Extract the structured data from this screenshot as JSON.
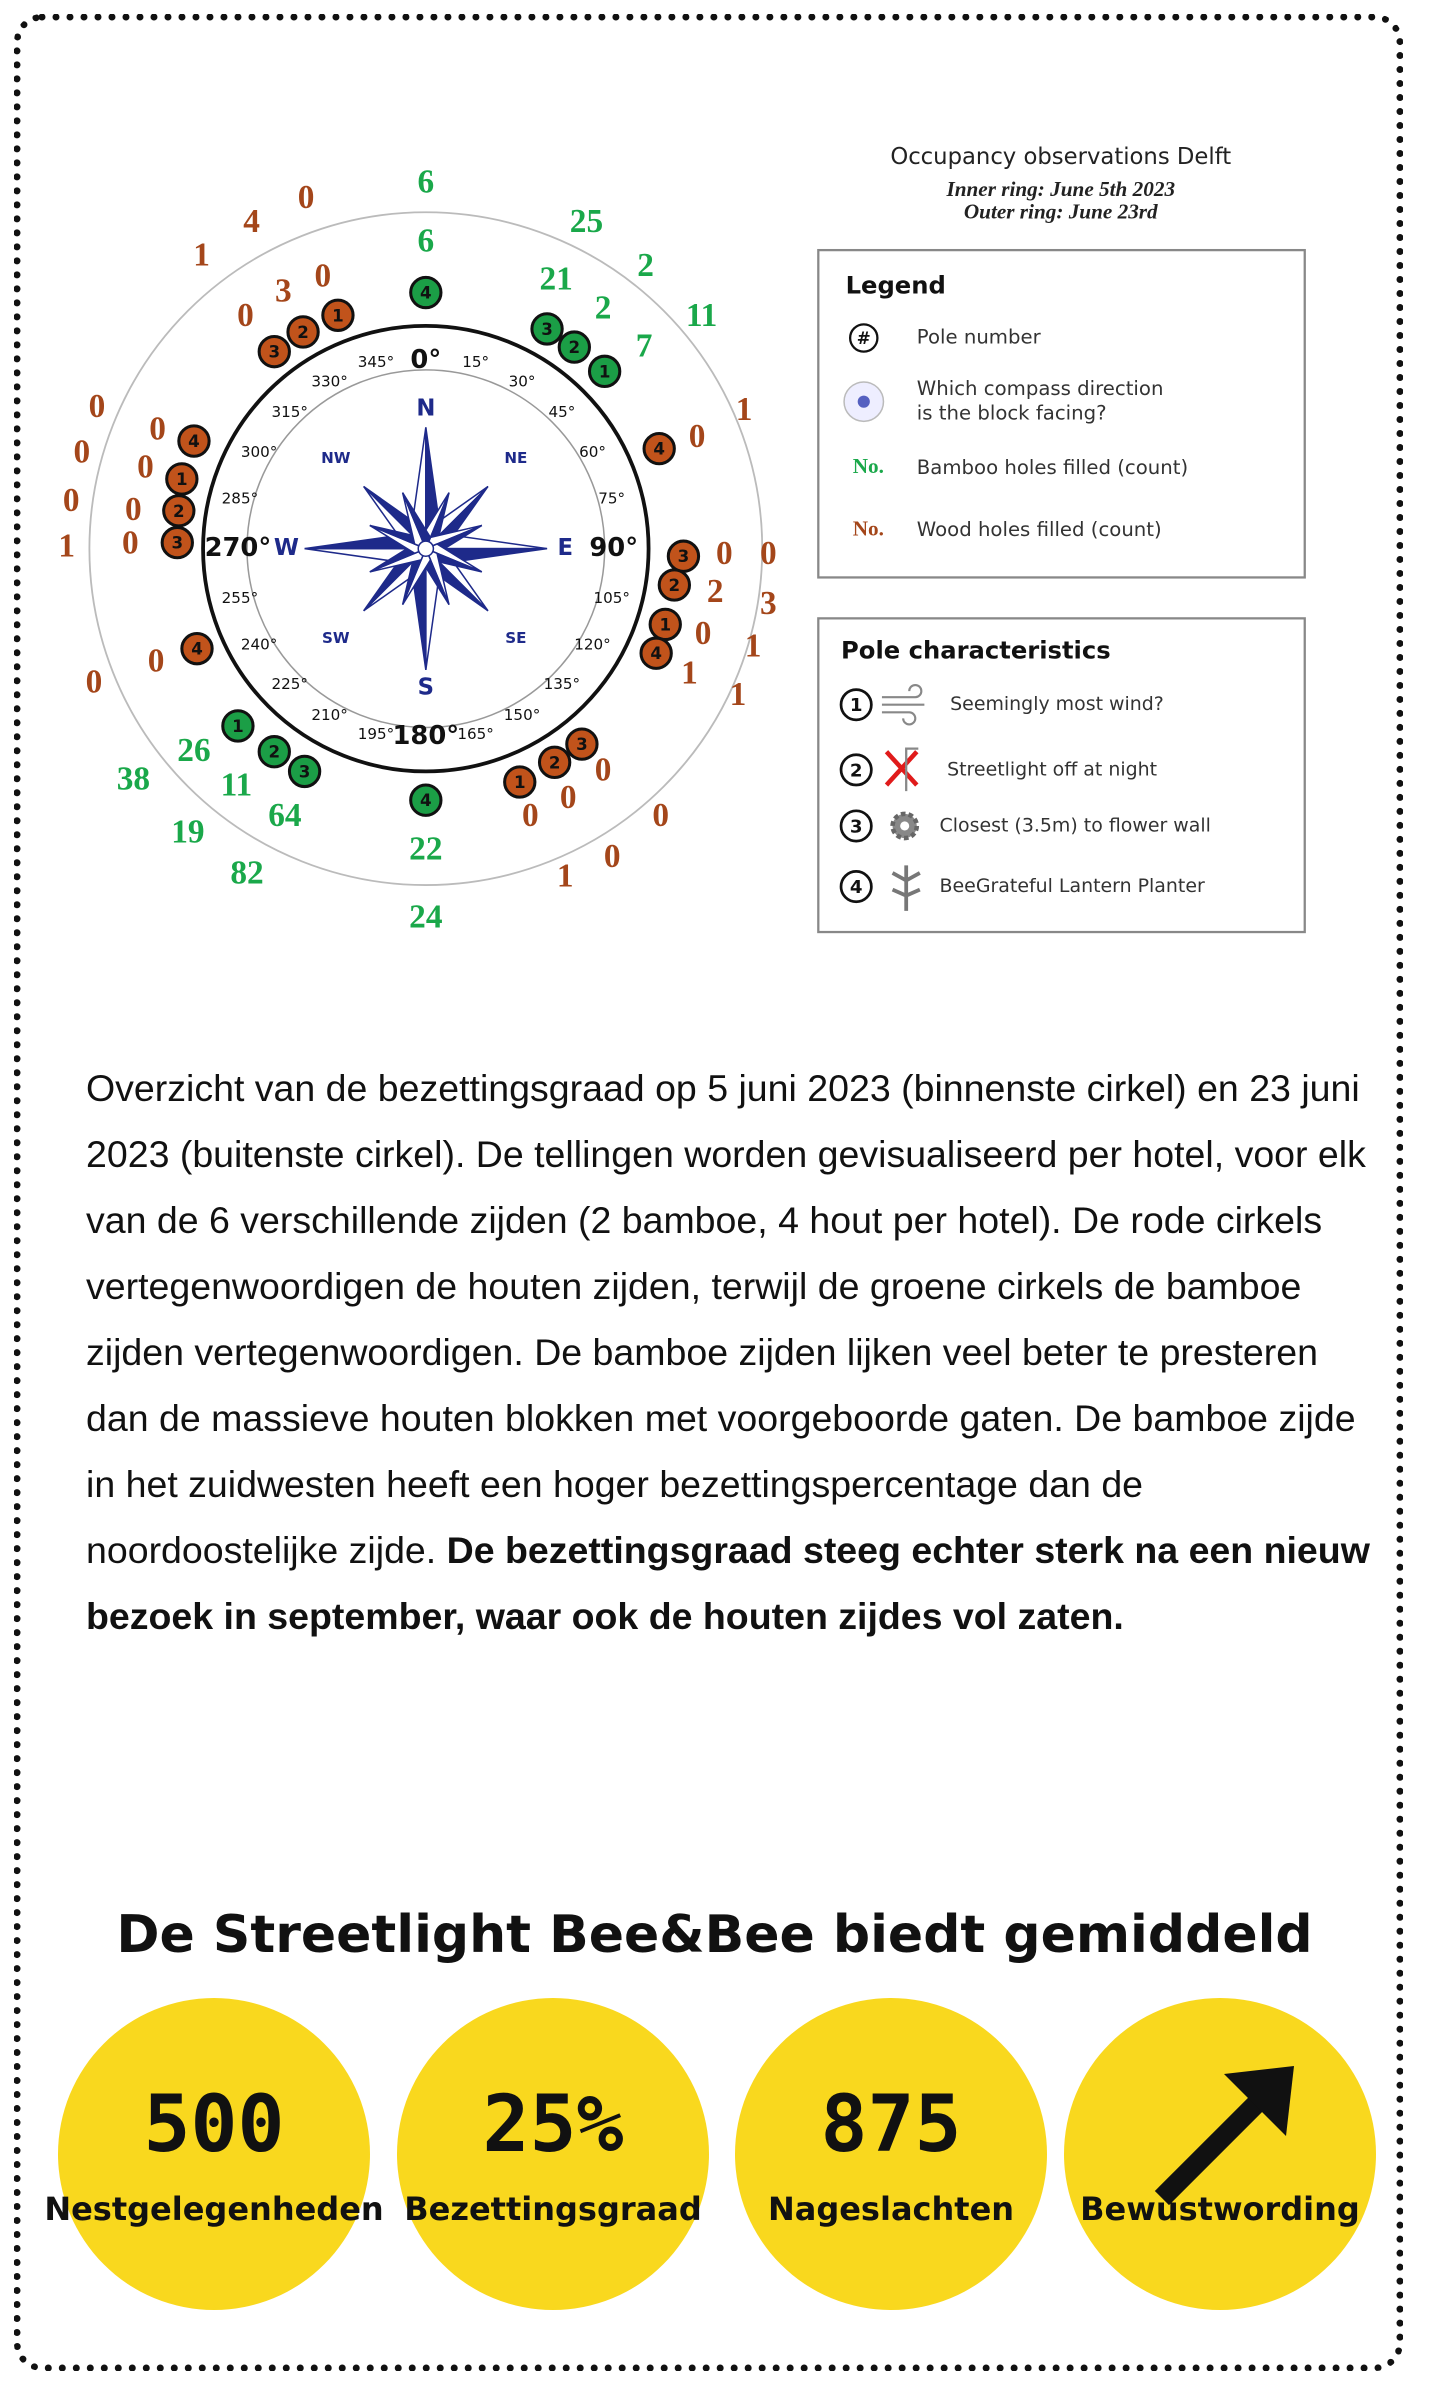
{
  "figure": {
    "title": "Occupancy observations Delft",
    "subtitle_lines": [
      "Inner ring: June 5th 2023",
      "Outer ring: June 23rd"
    ],
    "compass": {
      "degrees": [
        "0°",
        "15°",
        "30°",
        "45°",
        "60°",
        "75°",
        "90°",
        "105°",
        "120°",
        "135°",
        "150°",
        "165°",
        "180°",
        "195°",
        "210°",
        "225°",
        "240°",
        "255°",
        "270°",
        "285°",
        "300°",
        "315°",
        "330°",
        "345°"
      ],
      "directions": [
        "N",
        "NE",
        "E",
        "SE",
        "S",
        "SW",
        "W",
        "NW"
      ]
    },
    "counts": [
      {
        "value": 6,
        "kind": "bamboo"
      },
      {
        "value": 6,
        "kind": "bamboo"
      },
      {
        "value": 25,
        "kind": "bamboo"
      },
      {
        "value": 21,
        "kind": "bamboo"
      },
      {
        "value": 2,
        "kind": "bamboo"
      },
      {
        "value": 2,
        "kind": "bamboo"
      },
      {
        "value": 11,
        "kind": "bamboo"
      },
      {
        "value": 7,
        "kind": "bamboo"
      },
      {
        "value": 1,
        "kind": "wood"
      },
      {
        "value": 0,
        "kind": "wood"
      },
      {
        "value": 0,
        "kind": "wood"
      },
      {
        "value": 0,
        "kind": "wood"
      },
      {
        "value": 2,
        "kind": "wood"
      },
      {
        "value": 3,
        "kind": "wood"
      },
      {
        "value": 0,
        "kind": "wood"
      },
      {
        "value": 1,
        "kind": "wood"
      },
      {
        "value": 1,
        "kind": "wood"
      },
      {
        "value": 1,
        "kind": "wood"
      },
      {
        "value": 0,
        "kind": "wood"
      },
      {
        "value": 0,
        "kind": "wood"
      },
      {
        "value": 0,
        "kind": "wood"
      },
      {
        "value": 0,
        "kind": "wood"
      },
      {
        "value": 0,
        "kind": "wood"
      },
      {
        "value": 1,
        "kind": "wood"
      },
      {
        "value": 22,
        "kind": "bamboo"
      },
      {
        "value": 24,
        "kind": "bamboo"
      },
      {
        "value": 26,
        "kind": "bamboo"
      },
      {
        "value": 38,
        "kind": "bamboo"
      },
      {
        "value": 11,
        "kind": "bamboo"
      },
      {
        "value": 64,
        "kind": "bamboo"
      },
      {
        "value": 19,
        "kind": "bamboo"
      },
      {
        "value": 82,
        "kind": "bamboo"
      },
      {
        "value": 0,
        "kind": "wood"
      },
      {
        "value": 0,
        "kind": "wood"
      },
      {
        "value": 0,
        "kind": "wood"
      },
      {
        "value": 0,
        "kind": "wood"
      },
      {
        "value": 0,
        "kind": "wood"
      },
      {
        "value": 0,
        "kind": "wood"
      },
      {
        "value": 0,
        "kind": "wood"
      },
      {
        "value": 0,
        "kind": "wood"
      },
      {
        "value": 1,
        "kind": "wood"
      },
      {
        "value": 0,
        "kind": "wood"
      },
      {
        "value": 1,
        "kind": "wood"
      },
      {
        "value": 4,
        "kind": "wood"
      },
      {
        "value": 0,
        "kind": "wood"
      },
      {
        "value": 3,
        "kind": "wood"
      },
      {
        "value": 0,
        "kind": "wood"
      },
      {
        "value": 0,
        "kind": "wood"
      }
    ],
    "poles": [
      {
        "number": 4,
        "kind": "bamboo"
      },
      {
        "number": 3,
        "kind": "bamboo"
      },
      {
        "number": 2,
        "kind": "bamboo"
      },
      {
        "number": 1,
        "kind": "bamboo"
      },
      {
        "number": 4,
        "kind": "wood"
      },
      {
        "number": 3,
        "kind": "wood"
      },
      {
        "number": 2,
        "kind": "wood"
      },
      {
        "number": 1,
        "kind": "wood"
      },
      {
        "number": 4,
        "kind": "wood"
      },
      {
        "number": 3,
        "kind": "wood"
      },
      {
        "number": 2,
        "kind": "wood"
      },
      {
        "number": 1,
        "kind": "wood"
      },
      {
        "number": 4,
        "kind": "bamboo"
      },
      {
        "number": 1,
        "kind": "bamboo"
      },
      {
        "number": 2,
        "kind": "bamboo"
      },
      {
        "number": 3,
        "kind": "bamboo"
      },
      {
        "number": 4,
        "kind": "wood"
      },
      {
        "number": 4,
        "kind": "wood"
      },
      {
        "number": 1,
        "kind": "wood"
      },
      {
        "number": 2,
        "kind": "wood"
      },
      {
        "number": 3,
        "kind": "wood"
      },
      {
        "number": 3,
        "kind": "wood"
      },
      {
        "number": 2,
        "kind": "wood"
      },
      {
        "number": 1,
        "kind": "wood"
      }
    ],
    "legend": {
      "title": "Legend",
      "items": [
        {
          "symbol": "#",
          "text": [
            "Pole number"
          ]
        },
        {
          "text": [
            "Which compass direction",
            "is the block facing?"
          ]
        },
        {
          "symbol": "No.",
          "kind": "bamboo",
          "text": [
            "Bamboo holes filled (count)"
          ]
        },
        {
          "symbol": "No.",
          "kind": "wood",
          "text": [
            "Wood holes filled (count)"
          ]
        }
      ]
    },
    "pole_characteristics": {
      "title": "Pole characteristics",
      "items": [
        {
          "number": 1,
          "text": "Seemingly most wind?"
        },
        {
          "number": 2,
          "text": "Streetlight off at night"
        },
        {
          "number": 3,
          "text": "Closest (3.5m) to flower wall"
        },
        {
          "number": 4,
          "text": "BeeGrateful Lantern Planter"
        }
      ]
    }
  },
  "description": {
    "text": "Overzicht van de bezettingsgraad op 5 juni 2023 (binnenste cirkel) en 23 juni 2023 (buitenste cirkel). De tellingen worden gevisualiseerd per hotel, voor elk van de 6 verschillende zijden (2 bamboe, 4 hout per hotel). De rode cirkels vertegenwoordigen de houten zijden, terwijl de groene cirkels de bamboe zijden vertegenwoordigen. De bamboe zijden lijken veel beter te presteren dan de massieve houten blokken met voorgeboorde gaten. De bamboe zijde in het zuidwesten heeft een hoger bezettingspercentage dan de noordoostelijke zijde.",
    "bold": "De bezettingsgraad steeg echter sterk na een nieuw bezoek in september, waar ook de houten zijdes vol zaten."
  },
  "stats": {
    "heading": "De Streetlight Bee&Bee biedt gemiddeld",
    "items": [
      {
        "value": "500",
        "label": "Nestgelegenheden"
      },
      {
        "value": "25%",
        "label": "Bezettingsgraad"
      },
      {
        "value": "875",
        "label": "Nageslachten"
      },
      {
        "label": "Bewustwording"
      }
    ]
  }
}
